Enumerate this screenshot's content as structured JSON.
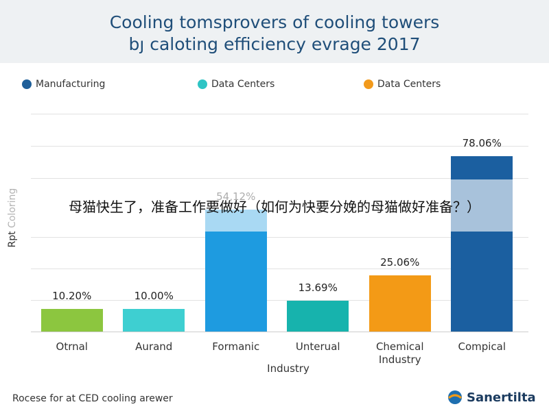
{
  "chart_data": {
    "type": "bar",
    "title": "Cooling tomsprovers of cooling towers",
    "subtitle": "bȷ caloting efficiency evrage 2017",
    "legend": [
      {
        "name": "Manufacturing",
        "color": "#1f5f99"
      },
      {
        "name": "Data Centers",
        "color": "#2ec4c4"
      },
      {
        "name": "Data Centers",
        "color": "#f29a1c"
      }
    ],
    "y_label": "Rpt Coloring",
    "x_label": "Industry",
    "categories": [
      "Otrnal",
      "Aurand",
      "Formanic",
      "Unterual",
      "Chemical Industry",
      "Compical"
    ],
    "values": [
      10.2,
      10.0,
      54.12,
      13.69,
      25.06,
      78.06
    ],
    "value_labels": [
      "10.20%",
      "10.00%",
      "54,12%",
      "13.69%",
      "25.06%",
      "78.06%"
    ],
    "colors": [
      "#8cc63f",
      "#3ecfd1",
      "#1e9be0",
      "#17b3ad",
      "#f39a16",
      "#1b5fa0"
    ],
    "ylim": [
      0,
      100
    ],
    "footer": "Rocese for at CED cooling arewer",
    "brand": "Sanertilta",
    "overlay": "母猫快生了，准备工作要做好（如何为快要分娩的母猫做好准备？）"
  }
}
